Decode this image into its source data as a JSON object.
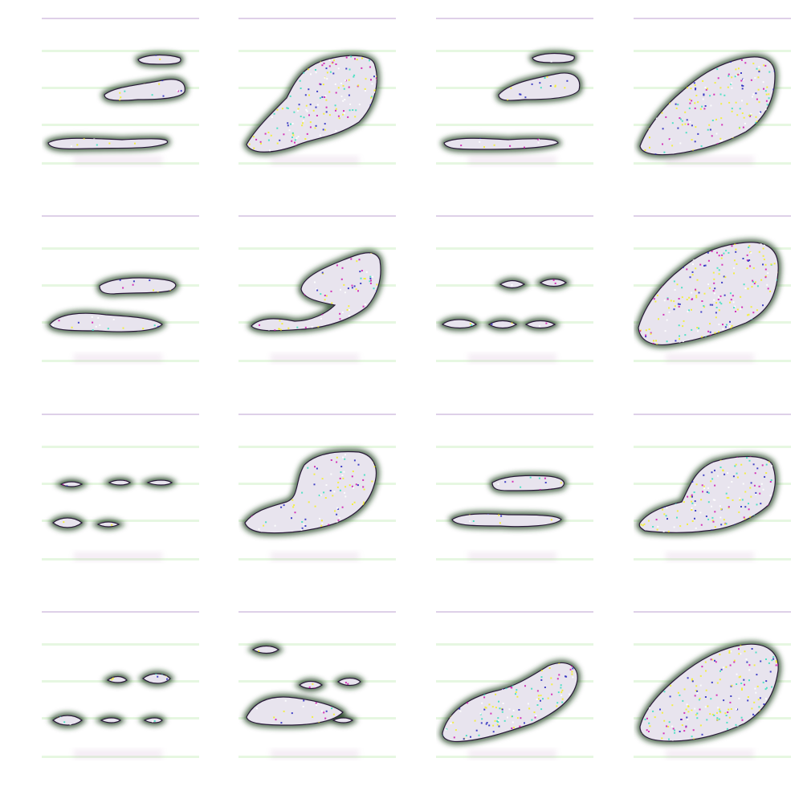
{
  "figure": {
    "rows": 4,
    "cols": 4,
    "background": "#ffffff"
  },
  "samples": [
    {
      "kind": "two-blobs",
      "fill": "sparse"
    },
    {
      "kind": "large-blob",
      "fill": "dense"
    },
    {
      "kind": "two-blobs",
      "fill": "sparse"
    },
    {
      "kind": "large-blob",
      "fill": "dense"
    },
    {
      "kind": "two-blobs",
      "fill": "sparse"
    },
    {
      "kind": "hook-blob",
      "fill": "medium"
    },
    {
      "kind": "dots",
      "fill": "sparse"
    },
    {
      "kind": "large-blob",
      "fill": "dense"
    },
    {
      "kind": "few-dots",
      "fill": "sparse"
    },
    {
      "kind": "diagonal-blob",
      "fill": "medium"
    },
    {
      "kind": "two-blobs",
      "fill": "sparse"
    },
    {
      "kind": "large-blob",
      "fill": "dense"
    },
    {
      "kind": "scattered-dots",
      "fill": "sparse"
    },
    {
      "kind": "multi-blobs",
      "fill": "sparse"
    },
    {
      "kind": "diagonal-blob",
      "fill": "dense"
    },
    {
      "kind": "large-blob",
      "fill": "dense"
    }
  ],
  "colors": {
    "outline": "#1a3a1a",
    "halo": "#6aa06a",
    "interior": "#e8e4ee",
    "speckle_yellow": "#f4f030",
    "speckle_cyan": "#40e0c0",
    "speckle_magenta": "#d020b0",
    "speckle_blue": "#3030c0",
    "stripe_green": "#b8e8a8"
  }
}
